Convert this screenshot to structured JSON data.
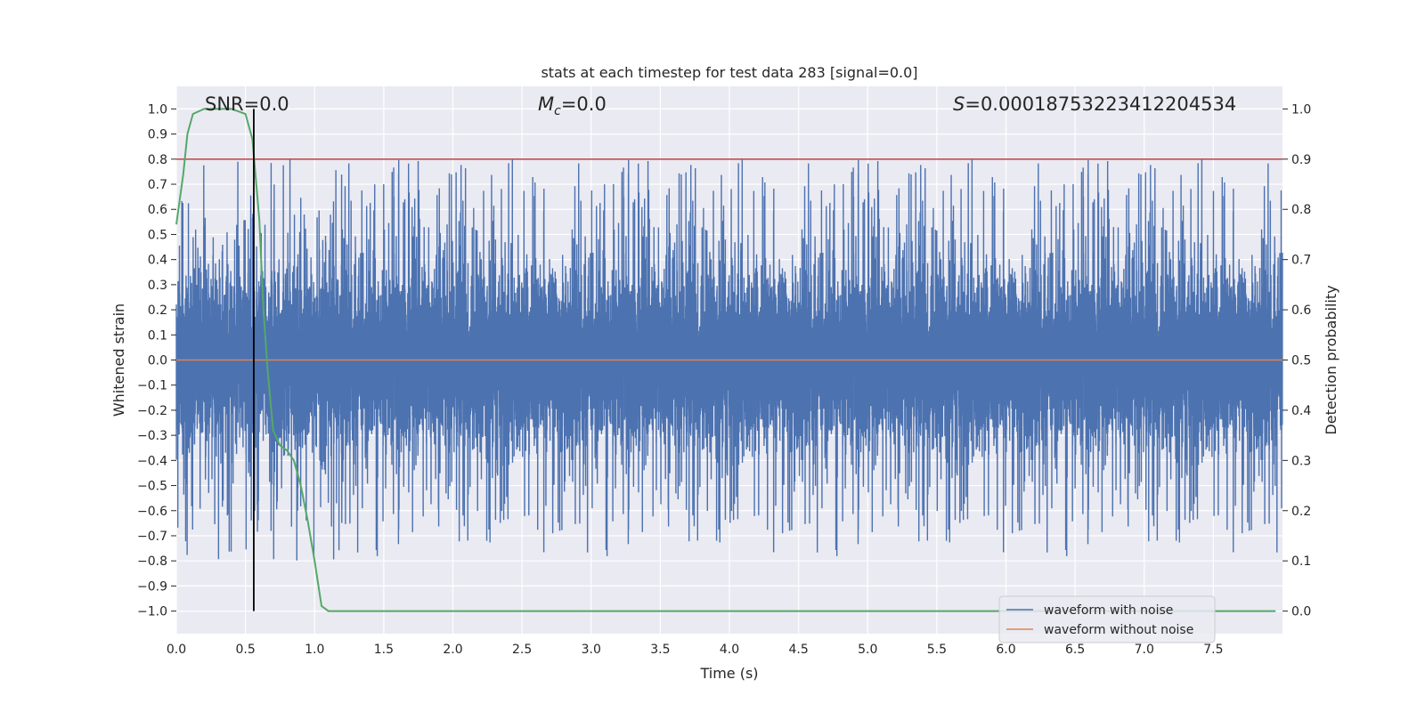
{
  "chart_data": {
    "type": "line",
    "title": "stats at each timestep for test data 283 [signal=0.0]",
    "xlabel": "Time (s)",
    "ylabel": "Whitened strain",
    "ylabel_right": "Detection probability",
    "xlim": [
      0.0,
      8.0
    ],
    "ylim": [
      -1.09,
      1.09
    ],
    "ylim_right": [
      -0.045,
      1.045
    ],
    "x_ticks": [
      "0.0",
      "0.5",
      "1.0",
      "1.5",
      "2.0",
      "2.5",
      "3.0",
      "3.5",
      "4.0",
      "4.5",
      "5.0",
      "5.5",
      "6.0",
      "6.5",
      "7.0",
      "7.5"
    ],
    "x_tick_values": [
      0.0,
      0.5,
      1.0,
      1.5,
      2.0,
      2.5,
      3.0,
      3.5,
      4.0,
      4.5,
      5.0,
      5.5,
      6.0,
      6.5,
      7.0,
      7.5
    ],
    "y_ticks": [
      "1.0",
      "0.9",
      "0.8",
      "0.7",
      "0.6",
      "0.5",
      "0.4",
      "0.3",
      "0.2",
      "0.1",
      "0.0",
      "−0.1",
      "−0.2",
      "−0.3",
      "−0.4",
      "−0.5",
      "−0.6",
      "−0.7",
      "−0.8",
      "−0.9",
      "−1.0"
    ],
    "y_tick_values": [
      1.0,
      0.9,
      0.8,
      0.7,
      0.6,
      0.5,
      0.4,
      0.3,
      0.2,
      0.1,
      0.0,
      -0.1,
      -0.2,
      -0.3,
      -0.4,
      -0.5,
      -0.6,
      -0.7,
      -0.8,
      -0.9,
      -1.0
    ],
    "y_ticks_right": [
      "1.0",
      "0.9",
      "0.8",
      "0.7",
      "0.6",
      "0.5",
      "0.4",
      "0.3",
      "0.2",
      "0.1",
      "0.0"
    ],
    "y_tick_values_right": [
      1.0,
      0.9,
      0.8,
      0.7,
      0.6,
      0.5,
      0.4,
      0.3,
      0.2,
      0.1,
      0.0
    ],
    "grid": true,
    "legend_position": "lower-right",
    "annotations": {
      "snr": "SNR=0.0",
      "mc_symbol": "M",
      "mc_sub": "c",
      "mc_value": "=0.0",
      "s_symbol": "S",
      "s_value": "=0.00018753223412204534"
    },
    "series": [
      {
        "name": "waveform with noise",
        "color": "#4c72b0",
        "axis": "left",
        "kind": "noise",
        "sample_rate": 2048,
        "duration": 8.0,
        "amplitude_core": 0.42,
        "spike_max": 1.0,
        "spike_min": -0.99
      },
      {
        "name": "waveform without noise",
        "color": "#dd8452",
        "axis": "left",
        "x": [
          0.0,
          8.0
        ],
        "y": [
          0.0,
          0.0
        ]
      },
      {
        "color": "#55a868",
        "axis": "right",
        "x": [
          0.0,
          0.05,
          0.08,
          0.12,
          0.2,
          0.3,
          0.4,
          0.5,
          0.55,
          0.6,
          0.63,
          0.66,
          0.7,
          0.75,
          0.8,
          0.85,
          0.9,
          0.95,
          1.0,
          1.05,
          1.1,
          1.2,
          1.5,
          2.0,
          3.0,
          4.0,
          5.0,
          6.0,
          7.0,
          7.95
        ],
        "y": [
          0.77,
          0.87,
          0.95,
          0.99,
          1.0,
          1.0,
          1.0,
          0.99,
          0.94,
          0.78,
          0.6,
          0.48,
          0.36,
          0.33,
          0.32,
          0.3,
          0.25,
          0.18,
          0.1,
          0.01,
          0.0,
          0.0,
          0.0,
          0.0,
          0.0,
          0.0,
          0.0,
          0.0,
          0.0,
          0.0
        ]
      }
    ],
    "threshold_line": {
      "axis": "right",
      "y": 0.9,
      "color": "#c44e52"
    },
    "vertical_marker": {
      "x": 0.56,
      "ymin": -1.0,
      "ymax": 1.0,
      "color": "#000000"
    }
  }
}
